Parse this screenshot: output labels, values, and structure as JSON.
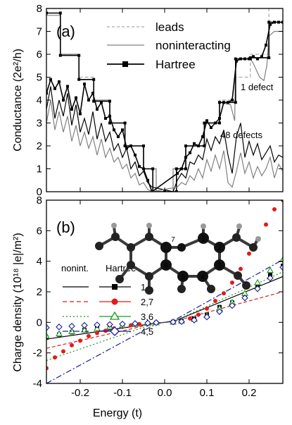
{
  "chart_data": [
    {
      "type": "line",
      "panel_label": "(a)",
      "ylabel": "Conductance (2e²/h)",
      "xlim": [
        -0.28,
        0.28
      ],
      "ylim": [
        0,
        8
      ],
      "xticks": [
        -0.2,
        -0.1,
        0.0,
        0.1,
        0.2
      ],
      "yticks": [
        0,
        1,
        2,
        3,
        4,
        5,
        6,
        7,
        8
      ],
      "ytick_labels": [
        "0",
        "1",
        "2",
        "3",
        "4",
        "5",
        "6",
        "7",
        "8"
      ],
      "grid": false,
      "legend": {
        "placement": "top-right",
        "entries": [
          "leads",
          "noninteracting",
          "Hartree"
        ]
      },
      "annotations": [
        "1 defect",
        "48 defects"
      ],
      "series": [
        {
          "name": "leads",
          "color": "#aaaaaa",
          "style": "dashed",
          "x": [
            -0.28,
            -0.247,
            -0.247,
            -0.203,
            -0.203,
            -0.168,
            -0.168,
            -0.13,
            -0.13,
            -0.094,
            -0.094,
            -0.05,
            -0.05,
            -0.02,
            -0.02,
            0.02,
            0.02,
            0.05,
            0.05,
            0.094,
            0.094,
            0.13,
            0.13,
            0.168,
            0.168,
            0.203,
            0.203,
            0.247,
            0.247,
            0.28
          ],
          "y": [
            8,
            8,
            6,
            6,
            5,
            5,
            4,
            4,
            3,
            3,
            2,
            2,
            1,
            1,
            0,
            0,
            1,
            1,
            2,
            2,
            3,
            3,
            4,
            4,
            5,
            5,
            6,
            6,
            8,
            8
          ]
        },
        {
          "name": "noninteracting",
          "color": "#808080",
          "style": "solid",
          "x": [
            -0.28,
            -0.247,
            -0.247,
            -0.203,
            -0.203,
            -0.168,
            -0.168,
            -0.13,
            -0.13,
            -0.094,
            -0.094,
            -0.05,
            -0.05,
            -0.02,
            -0.02,
            0.02,
            0.02,
            0.05,
            0.05,
            0.094,
            0.094,
            0.13,
            0.13,
            0.156,
            0.166,
            0.168,
            0.203,
            0.21,
            0.225,
            0.235,
            0.242,
            0.247,
            0.26,
            0.28
          ],
          "y": [
            7.7,
            7.7,
            6.0,
            6.0,
            4.9,
            4.9,
            4.0,
            4.0,
            3.0,
            3.0,
            2.0,
            2.0,
            1.0,
            1.0,
            0.0,
            0.0,
            1.0,
            1.0,
            2.0,
            2.0,
            3.0,
            3.0,
            3.9,
            3.8,
            3.1,
            5.8,
            5.8,
            5.6,
            5.0,
            4.85,
            5.5,
            6.8,
            7.0,
            7.0
          ]
        },
        {
          "name": "Hartree",
          "color": "#000000",
          "style": "solid",
          "marker": "square",
          "x": [
            -0.28,
            -0.247,
            -0.247,
            -0.203,
            -0.203,
            -0.168,
            -0.168,
            -0.13,
            -0.13,
            -0.094,
            -0.094,
            -0.05,
            -0.05,
            -0.028,
            -0.028,
            0.0,
            0.028,
            0.028,
            0.05,
            0.05,
            0.094,
            0.094,
            0.13,
            0.13,
            0.168,
            0.168,
            0.203,
            0.203,
            0.247,
            0.247,
            0.28
          ],
          "y": [
            7.8,
            7.8,
            5.95,
            5.95,
            4.9,
            4.9,
            3.95,
            3.95,
            3.0,
            3.0,
            2.0,
            2.0,
            1.0,
            1.0,
            0.0,
            0.0,
            0.0,
            1.0,
            1.0,
            2.0,
            2.0,
            3.0,
            3.0,
            3.9,
            3.9,
            5.8,
            5.8,
            5.85,
            5.85,
            7.4,
            7.4
          ]
        },
        {
          "name": "1 defect",
          "color": "#000000",
          "style": "solid",
          "marker": "square",
          "x": [
            -0.28,
            -0.27,
            -0.26,
            -0.25,
            -0.24,
            -0.23,
            -0.22,
            -0.21,
            -0.2,
            -0.19,
            -0.18,
            -0.17,
            -0.16,
            -0.15,
            -0.14,
            -0.13,
            -0.12,
            -0.11,
            -0.1,
            -0.09,
            -0.08,
            -0.07,
            -0.06,
            -0.05,
            -0.04,
            -0.03,
            0.03,
            0.04,
            0.05,
            0.06,
            0.07,
            0.08,
            0.09,
            0.1,
            0.11,
            0.12,
            0.13,
            0.14,
            0.15,
            0.16,
            0.17,
            0.18,
            0.19,
            0.2,
            0.21,
            0.22,
            0.23,
            0.24,
            0.25,
            0.26,
            0.27,
            0.28
          ],
          "y": [
            4.3,
            4.9,
            4.5,
            4.8,
            4.0,
            4.6,
            3.6,
            4.1,
            3.4,
            4.7,
            4.0,
            4.3,
            3.6,
            3.9,
            3.2,
            3.3,
            2.7,
            2.4,
            2.7,
            1.9,
            2.0,
            1.6,
            1.1,
            1.0,
            0.5,
            0.0,
            0.8,
            1.0,
            1.5,
            1.7,
            2.1,
            2.0,
            2.4,
            3.1,
            2.8,
            3.0,
            3.2,
            3.9,
            3.9,
            4.0,
            5.7,
            5.8,
            5.8,
            5.8,
            5.9,
            5.8,
            5.9,
            6.4,
            7.3,
            7.4,
            7.4,
            7.4
          ]
        },
        {
          "name": "48 defects",
          "color": "#000000",
          "style": "solid",
          "x": [
            -0.28,
            -0.27,
            -0.26,
            -0.25,
            -0.24,
            -0.23,
            -0.22,
            -0.21,
            -0.2,
            -0.19,
            -0.18,
            -0.17,
            -0.16,
            -0.15,
            -0.14,
            -0.13,
            -0.12,
            -0.11,
            -0.1,
            -0.09,
            -0.08,
            -0.07,
            -0.06,
            -0.05,
            -0.04,
            -0.03,
            0.02,
            0.03,
            0.04,
            0.05,
            0.06,
            0.07,
            0.08,
            0.09,
            0.1,
            0.11,
            0.12,
            0.13,
            0.14,
            0.15,
            0.16,
            0.17,
            0.18,
            0.19,
            0.2,
            0.21,
            0.22,
            0.23,
            0.24,
            0.25,
            0.26,
            0.27,
            0.28
          ],
          "y": [
            3.6,
            4.6,
            3.2,
            4.0,
            3.3,
            4.3,
            2.9,
            3.8,
            2.6,
            3.2,
            2.5,
            3.5,
            2.3,
            3.0,
            2.2,
            2.6,
            1.8,
            2.1,
            1.5,
            1.9,
            1.0,
            1.3,
            0.7,
            0.9,
            0.4,
            0.2,
            0.0,
            0.5,
            0.8,
            0.6,
            1.3,
            1.2,
            1.6,
            1.4,
            2.3,
            1.8,
            2.4,
            2.1,
            2.7,
            1.6,
            0.8,
            2.4,
            3.0,
            1.5,
            2.2,
            1.6,
            2.1,
            1.4,
            1.7,
            2.0,
            1.3,
            1.6,
            1.5
          ]
        },
        {
          "name": "noninteracting (48 defects)",
          "color": "#808080",
          "style": "solid",
          "x": [
            -0.28,
            -0.27,
            -0.26,
            -0.25,
            -0.24,
            -0.23,
            -0.22,
            -0.21,
            -0.2,
            -0.19,
            -0.18,
            -0.17,
            -0.16,
            -0.15,
            -0.14,
            -0.13,
            -0.12,
            -0.11,
            -0.1,
            -0.09,
            -0.08,
            -0.07,
            -0.06,
            -0.05,
            -0.04,
            -0.03,
            0.03,
            0.04,
            0.05,
            0.06,
            0.07,
            0.08,
            0.09,
            0.1,
            0.11,
            0.12,
            0.13,
            0.14,
            0.15,
            0.16,
            0.17,
            0.18,
            0.19,
            0.2,
            0.21,
            0.22,
            0.23,
            0.24,
            0.25,
            0.26,
            0.27,
            0.28
          ],
          "y": [
            3.0,
            4.0,
            2.7,
            3.5,
            2.6,
            3.3,
            2.2,
            2.9,
            2.0,
            2.6,
            1.9,
            2.4,
            1.6,
            2.3,
            1.5,
            1.9,
            1.3,
            1.5,
            1.0,
            1.2,
            0.6,
            0.8,
            0.3,
            0.4,
            0.1,
            0.0,
            0.2,
            0.4,
            0.3,
            0.7,
            0.5,
            1.0,
            0.6,
            1.4,
            0.9,
            1.6,
            1.0,
            1.8,
            0.4,
            0.2,
            0.9,
            1.7,
            0.8,
            1.3,
            0.6,
            1.1,
            0.7,
            1.0,
            1.5,
            0.6,
            1.2,
            0.9
          ]
        }
      ]
    },
    {
      "type": "line",
      "panel_label": "(b)",
      "xlabel": "Energy (t)",
      "ylabel": "Charge density (10¹⁸ |e|/m²)",
      "xlim": [
        -0.28,
        0.28
      ],
      "ylim": [
        -4,
        8
      ],
      "xticks": [
        -0.2,
        -0.1,
        0.0,
        0.1,
        0.2
      ],
      "xtick_labels": [
        "-0.2",
        "-0.1",
        "0.0",
        "0.1",
        "0.2"
      ],
      "yticks": [
        -4,
        -2,
        0,
        2,
        4,
        6,
        8
      ],
      "ytick_labels": [
        "-4",
        "-2",
        "0",
        "2",
        "4",
        "6",
        "8"
      ],
      "grid": false,
      "legend": {
        "placement": "center-left",
        "column_headers": [
          "nonint.",
          "Hartree"
        ],
        "rows": [
          "1",
          "2,7",
          "3,6",
          "4,5"
        ]
      },
      "inset": {
        "type": "molecule",
        "atom_labels": [
          "1",
          "2",
          "3",
          "4",
          "5",
          "6",
          "7"
        ]
      },
      "series": [
        {
          "name": "1 nonint.",
          "color": "#000000",
          "style": "solid",
          "x": [
            -0.28,
            -0.02,
            0.02,
            0.28
          ],
          "y": [
            -1.1,
            -0.05,
            0.05,
            3.0
          ]
        },
        {
          "name": "2,7 nonint.",
          "color": "#e41a1c",
          "style": "dashed",
          "x": [
            -0.28,
            -0.02,
            0.02,
            0.28
          ],
          "y": [
            -1.7,
            -0.05,
            0.05,
            2.0
          ]
        },
        {
          "name": "3,6 nonint.",
          "color": "#1a9a1a",
          "style": "dotted",
          "x": [
            -0.28,
            -0.02,
            0.02,
            0.28
          ],
          "y": [
            -2.5,
            -0.05,
            0.05,
            3.3
          ]
        },
        {
          "name": "4,5 nonint.",
          "color": "#1a1a9a",
          "style": "dashdot",
          "x": [
            -0.28,
            -0.02,
            0.02,
            0.28
          ],
          "y": [
            -4.0,
            -0.1,
            0.1,
            4.1
          ]
        },
        {
          "name": "1 Hartree",
          "color": "#000000",
          "marker": "square-filled",
          "x": [
            -0.28,
            -0.25,
            -0.22,
            -0.19,
            -0.16,
            -0.13,
            -0.1,
            -0.07,
            -0.04,
            -0.02,
            0.02,
            0.04,
            0.07,
            0.1,
            0.13,
            0.16,
            0.19,
            0.22,
            0.25,
            0.28
          ],
          "y": [
            -1.0,
            -0.8,
            -0.65,
            -0.5,
            -0.4,
            -0.3,
            -0.2,
            -0.15,
            -0.08,
            -0.03,
            0.03,
            0.1,
            0.25,
            0.5,
            1.0,
            1.3,
            1.8,
            2.4,
            3.1,
            3.7
          ]
        },
        {
          "name": "2,7 Hartree",
          "color": "#e41a1c",
          "marker": "circle-filled",
          "x": [
            -0.28,
            -0.26,
            -0.24,
            -0.22,
            -0.2,
            -0.18,
            -0.16,
            -0.14,
            -0.12,
            -0.1,
            -0.08,
            -0.06,
            -0.04,
            -0.02,
            0.02,
            0.04,
            0.06,
            0.08,
            0.1,
            0.12,
            0.14,
            0.16,
            0.18,
            0.2,
            0.22,
            0.24,
            0.26,
            0.28
          ],
          "y": [
            -3.0,
            -2.3,
            -1.9,
            -1.5,
            -1.2,
            -0.9,
            -0.7,
            -0.55,
            -0.4,
            -0.3,
            -0.2,
            -0.12,
            -0.06,
            -0.02,
            0.03,
            0.1,
            0.25,
            0.5,
            0.9,
            1.4,
            1.9,
            2.6,
            3.5,
            4.5,
            5.4,
            6.4,
            7.4,
            8.0
          ]
        },
        {
          "name": "3,6 Hartree",
          "color": "#1a9a1a",
          "marker": "triangle-open",
          "x": [
            -0.28,
            -0.25,
            -0.22,
            -0.19,
            -0.16,
            -0.13,
            -0.1,
            -0.07,
            -0.04,
            -0.02,
            0.02,
            0.04,
            0.07,
            0.1,
            0.13,
            0.16,
            0.19,
            0.22,
            0.25,
            0.28
          ],
          "y": [
            -0.9,
            -0.75,
            -0.6,
            -0.5,
            -0.4,
            -0.3,
            -0.2,
            -0.13,
            -0.06,
            -0.02,
            0.02,
            0.08,
            0.2,
            0.45,
            0.9,
            1.3,
            1.9,
            2.6,
            3.4,
            4.1
          ]
        },
        {
          "name": "4,5 Hartree",
          "color": "#1a1a9a",
          "marker": "diamond-open",
          "x": [
            -0.28,
            -0.25,
            -0.22,
            -0.19,
            -0.16,
            -0.13,
            -0.1,
            -0.07,
            -0.04,
            -0.02,
            0.02,
            0.04,
            0.07,
            0.1,
            0.13,
            0.16,
            0.19,
            0.22,
            0.25,
            0.28
          ],
          "y": [
            -0.35,
            -0.3,
            -0.25,
            -0.2,
            -0.17,
            -0.14,
            -0.11,
            -0.08,
            -0.05,
            -0.02,
            0.02,
            0.05,
            0.15,
            0.35,
            0.7,
            1.1,
            1.6,
            2.2,
            2.9,
            3.6
          ]
        }
      ]
    }
  ]
}
